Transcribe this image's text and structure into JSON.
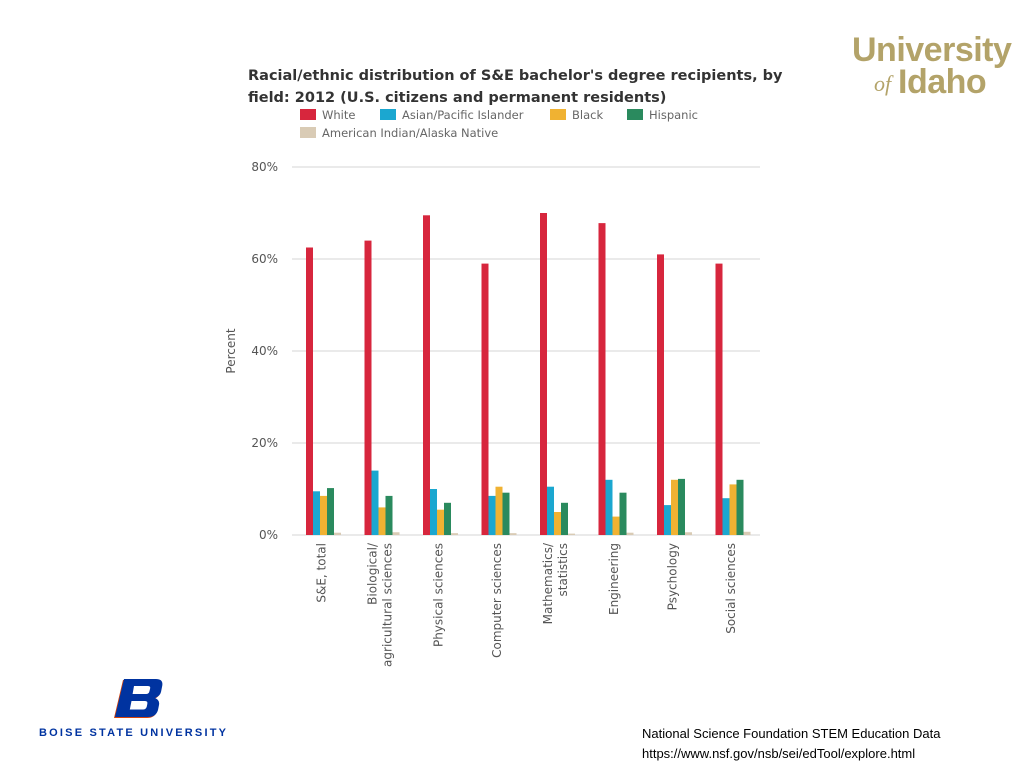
{
  "logos": {
    "uidaho": {
      "line1": "University",
      "of": "of",
      "idaho": "Idaho",
      "color": "#b3a369"
    },
    "bsu": {
      "name": "BOISE STATE UNIVERSITY",
      "color": "#0033a0",
      "accent": "#d64309"
    }
  },
  "source": {
    "line1": "National Science Foundation STEM Education Data",
    "line2": "https://www.nsf.gov/nsb/sei/edTool/explore.html"
  },
  "chart_data": {
    "type": "bar",
    "title": "Racial/ethnic distribution of S&E bachelor's degree recipients, by field: 2012 (U.S. citizens and permanent residents)",
    "title_lines": [
      "Racial/ethnic distribution of S&E bachelor's degree recipients, by",
      "field: 2012 (U.S. citizens and permanent residents)"
    ],
    "ylabel": "Percent",
    "xlabel": "",
    "ylim": [
      0,
      80
    ],
    "yticks": [
      0,
      20,
      40,
      60,
      80
    ],
    "ytick_labels": [
      "0%",
      "20%",
      "40%",
      "60%",
      "80%"
    ],
    "grid": true,
    "legend_position": "top",
    "categories": [
      "S&E, total",
      "Biological/ agricultural sciences",
      "Physical sciences",
      "Computer sciences",
      "Mathematics/ statistics",
      "Engineering",
      "Psychology",
      "Social sciences"
    ],
    "category_lines": [
      [
        "S&E, total"
      ],
      [
        "Biological/",
        "agricultural sciences"
      ],
      [
        "Physical sciences"
      ],
      [
        "Computer sciences"
      ],
      [
        "Mathematics/",
        "statistics"
      ],
      [
        "Engineering"
      ],
      [
        "Psychology"
      ],
      [
        "Social sciences"
      ]
    ],
    "series": [
      {
        "name": "White",
        "color": "#d7263d",
        "values": [
          62.5,
          64,
          69.5,
          59,
          70,
          67.8,
          61,
          59
        ]
      },
      {
        "name": "Asian/Pacific Islander",
        "color": "#1ba7d0",
        "values": [
          9.5,
          14,
          10,
          8.5,
          10.5,
          12,
          6.5,
          8
        ]
      },
      {
        "name": "Black",
        "color": "#f0b232",
        "values": [
          8.5,
          6,
          5.5,
          10.5,
          5,
          4,
          12,
          11
        ]
      },
      {
        "name": "Hispanic",
        "color": "#2a8a5e",
        "values": [
          10.2,
          8.5,
          7,
          9.2,
          7,
          9.2,
          12.2,
          12
        ]
      },
      {
        "name": "American Indian/Alaska Native",
        "color": "#d9cbb5",
        "values": [
          0.5,
          0.6,
          0.4,
          0.4,
          0.3,
          0.5,
          0.6,
          0.7
        ]
      }
    ],
    "colors": {
      "grid": "#d4d4d4",
      "axis_text": "#555555",
      "title": "#333333"
    }
  }
}
